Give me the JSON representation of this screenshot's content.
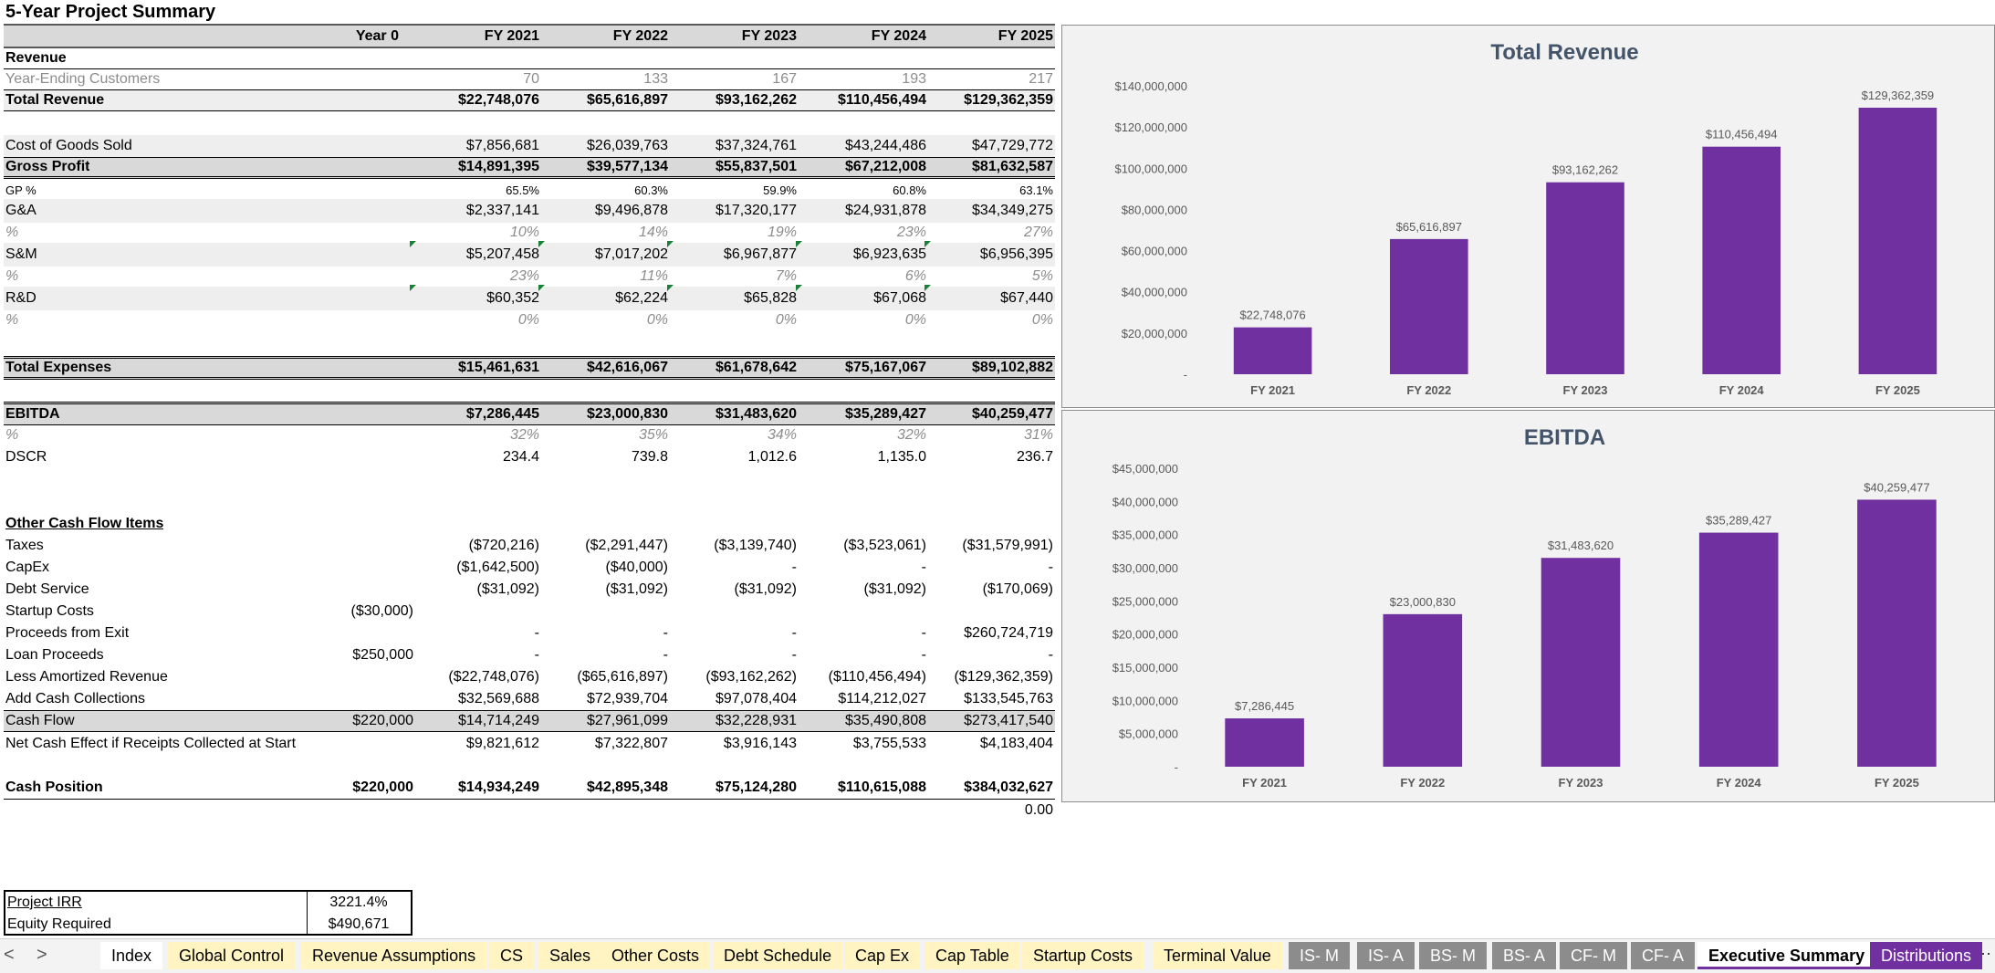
{
  "title": "5-Year Project Summary",
  "columns": [
    "Year 0",
    "FY 2021",
    "FY 2022",
    "FY 2023",
    "FY 2024",
    "FY 2025"
  ],
  "rows": {
    "revenue_header": "Revenue",
    "customers": {
      "label": "Year-Ending Customers",
      "values": [
        "",
        "70",
        "133",
        "167",
        "193",
        "217"
      ]
    },
    "total_revenue": {
      "label": "Total Revenue",
      "values": [
        "",
        "$22,748,076",
        "$65,616,897",
        "$93,162,262",
        "$110,456,494",
        "$129,362,359"
      ]
    },
    "cogs": {
      "label": "Cost of Goods Sold",
      "values": [
        "",
        "$7,856,681",
        "$26,039,763",
        "$37,324,761",
        "$43,244,486",
        "$47,729,772"
      ]
    },
    "gross_profit": {
      "label": "Gross Profit",
      "values": [
        "",
        "$14,891,395",
        "$39,577,134",
        "$55,837,501",
        "$67,212,008",
        "$81,632,587"
      ]
    },
    "gp_pct": {
      "label": "GP %",
      "values": [
        "",
        "65.5%",
        "60.3%",
        "59.9%",
        "60.8%",
        "63.1%"
      ]
    },
    "ga": {
      "label": "G&A",
      "values": [
        "",
        "$2,337,141",
        "$9,496,878",
        "$17,320,177",
        "$24,931,878",
        "$34,349,275"
      ]
    },
    "ga_pct": {
      "label": "%",
      "values": [
        "",
        "10%",
        "14%",
        "19%",
        "23%",
        "27%"
      ]
    },
    "sm": {
      "label": "S&M",
      "values": [
        "",
        "$5,207,458",
        "$7,017,202",
        "$6,967,877",
        "$6,923,635",
        "$6,956,395"
      ]
    },
    "sm_pct": {
      "label": "%",
      "values": [
        "",
        "23%",
        "11%",
        "7%",
        "6%",
        "5%"
      ]
    },
    "rd": {
      "label": "R&D",
      "values": [
        "",
        "$60,352",
        "$62,224",
        "$65,828",
        "$67,068",
        "$67,440"
      ]
    },
    "rd_pct": {
      "label": "%",
      "values": [
        "",
        "0%",
        "0%",
        "0%",
        "0%",
        "0%"
      ]
    },
    "total_expenses": {
      "label": "Total Expenses",
      "values": [
        "",
        "$15,461,631",
        "$42,616,067",
        "$61,678,642",
        "$75,167,067",
        "$89,102,882"
      ]
    },
    "ebitda": {
      "label": "EBITDA",
      "values": [
        "",
        "$7,286,445",
        "$23,000,830",
        "$31,483,620",
        "$35,289,427",
        "$40,259,477"
      ]
    },
    "ebitda_pct": {
      "label": "%",
      "values": [
        "",
        "32%",
        "35%",
        "34%",
        "32%",
        "31%"
      ]
    },
    "dscr": {
      "label": "DSCR",
      "values": [
        "",
        "234.4",
        "739.8",
        "1,012.6",
        "1,135.0",
        "236.7"
      ]
    },
    "other_header": "Other Cash Flow Items",
    "taxes": {
      "label": "Taxes",
      "values": [
        "",
        "($720,216)",
        "($2,291,447)",
        "($3,139,740)",
        "($3,523,061)",
        "($31,579,991)"
      ]
    },
    "capex": {
      "label": "CapEx",
      "values": [
        "",
        "($1,642,500)",
        "($40,000)",
        "-",
        "-",
        "-"
      ]
    },
    "debt_service": {
      "label": "Debt Service",
      "values": [
        "",
        "($31,092)",
        "($31,092)",
        "($31,092)",
        "($31,092)",
        "($170,069)"
      ]
    },
    "startup": {
      "label": "Startup Costs",
      "values": [
        "($30,000)",
        "",
        "",
        "",
        "",
        ""
      ]
    },
    "exit": {
      "label": "Proceeds from Exit",
      "values": [
        "",
        "-",
        "-",
        "-",
        "-",
        "$260,724,719"
      ]
    },
    "loan": {
      "label": "Loan Proceeds",
      "values": [
        "$250,000",
        "-",
        "-",
        "-",
        "-",
        "-"
      ]
    },
    "amortized": {
      "label": "Less Amortized Revenue",
      "values": [
        "",
        "($22,748,076)",
        "($65,616,897)",
        "($93,162,262)",
        "($110,456,494)",
        "($129,362,359)"
      ]
    },
    "collections": {
      "label": "Add Cash Collections",
      "values": [
        "",
        "$32,569,688",
        "$72,939,704",
        "$97,078,404",
        "$114,212,027",
        "$133,545,763"
      ]
    },
    "cash_flow": {
      "label": "Cash Flow",
      "values": [
        "$220,000",
        "$14,714,249",
        "$27,961,099",
        "$32,228,931",
        "$35,490,808",
        "$273,417,540"
      ]
    },
    "net_cash": {
      "label": "Net Cash Effect if Receipts Collected at Start",
      "values": [
        "",
        "$9,821,612",
        "$7,322,807",
        "$3,916,143",
        "$3,755,533",
        "$4,183,404"
      ]
    },
    "cash_position": {
      "label": "Cash Position",
      "values": [
        "$220,000",
        "$14,934,249",
        "$42,895,348",
        "$75,124,280",
        "$110,615,088",
        "$384,032,627"
      ]
    },
    "check_value": "0.00"
  },
  "summary": {
    "irr_label": "Project IRR",
    "irr_value": "3221.4%",
    "equity_label": "Equity Required",
    "equity_value": "$490,671"
  },
  "chart_data": [
    {
      "type": "bar",
      "title": "Total Revenue",
      "categories": [
        "FY 2021",
        "FY 2022",
        "FY 2023",
        "FY 2024",
        "FY 2025"
      ],
      "values": [
        22748076,
        65616897,
        93162262,
        110456494,
        129362359
      ],
      "data_labels": [
        "$22,748,076",
        "$65,616,897",
        "$93,162,262",
        "$110,456,494",
        "$129,362,359"
      ],
      "ylim": [
        0,
        140000000
      ],
      "yticks": [
        "-",
        "$20,000,000",
        "$40,000,000",
        "$60,000,000",
        "$80,000,000",
        "$100,000,000",
        "$120,000,000",
        "$140,000,000"
      ],
      "color": "#7030a0"
    },
    {
      "type": "bar",
      "title": "EBITDA",
      "categories": [
        "FY 2021",
        "FY 2022",
        "FY 2023",
        "FY 2024",
        "FY 2025"
      ],
      "values": [
        7286445,
        23000830,
        31483620,
        35289427,
        40259477
      ],
      "data_labels": [
        "$7,286,445",
        "$23,000,830",
        "$31,483,620",
        "$35,289,427",
        "$40,259,477"
      ],
      "ylim": [
        0,
        45000000
      ],
      "yticks": [
        "-",
        "$5,000,000",
        "$10,000,000",
        "$15,000,000",
        "$20,000,000",
        "$25,000,000",
        "$30,000,000",
        "$35,000,000",
        "$40,000,000",
        "$45,000,000"
      ],
      "color": "#7030a0"
    }
  ],
  "tabs": {
    "nav_prev": "<",
    "nav_next": ">",
    "items": [
      "Index",
      "Global Control",
      "Revenue Assumptions",
      "CS",
      "Sales",
      "Other Costs",
      "Debt Schedule",
      "Cap Ex",
      "Cap Table",
      "Startup Costs",
      "Terminal Value",
      "IS- M",
      "IS- A",
      "BS- M",
      "BS- A",
      "CF- M",
      "CF- A",
      "Executive Summary",
      "Distributions"
    ],
    "more": "⋯"
  }
}
